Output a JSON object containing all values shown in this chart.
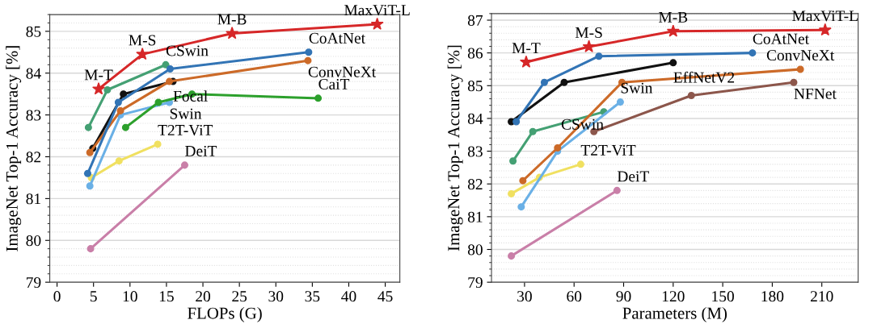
{
  "chart_data": [
    {
      "type": "line",
      "xlabel": "FLOPs (G)",
      "ylabel": "ImageNet Top-1 Accuracy [%]",
      "xlim": [
        -1,
        47
      ],
      "ylim": [
        79,
        85.4
      ],
      "xticks": [
        0,
        5,
        10,
        15,
        20,
        25,
        30,
        35,
        40,
        45
      ],
      "yticks": [
        79,
        80,
        81,
        82,
        83,
        84,
        85
      ],
      "grid": "y",
      "marker": "circle",
      "series": [
        {
          "color": "#d62728",
          "marker": "star",
          "x": [
            5.7,
            11.7,
            24.0,
            43.9
          ],
          "values": [
            83.62,
            84.45,
            84.95,
            85.17
          ]
        },
        {
          "color": "#3274b5",
          "x": [
            4.2,
            8.4,
            15.5,
            34.5
          ],
          "values": [
            81.6,
            83.3,
            84.1,
            84.5
          ]
        },
        {
          "color": "#cc6a28",
          "x": [
            4.5,
            8.7,
            15.4,
            34.4
          ],
          "values": [
            82.1,
            83.1,
            83.8,
            84.3
          ]
        },
        {
          "color": "#111111",
          "x": [
            4.9,
            9.1,
            15.9
          ],
          "values": [
            82.2,
            83.5,
            83.8
          ]
        },
        {
          "color": "#44a073",
          "x": [
            4.3,
            6.9,
            14.9
          ],
          "values": [
            82.7,
            83.6,
            84.2
          ]
        },
        {
          "color": "#2ca02c",
          "x": [
            9.4,
            13.9,
            18.5,
            35.8
          ],
          "values": [
            82.7,
            83.3,
            83.5,
            83.4
          ]
        },
        {
          "color": "#6ab0e6",
          "x": [
            4.5,
            8.7,
            15.4
          ],
          "values": [
            81.3,
            83.0,
            83.3
          ]
        },
        {
          "color": "#f0e060",
          "x": [
            4.7,
            8.5,
            13.8
          ],
          "values": [
            81.5,
            81.9,
            82.3
          ]
        },
        {
          "color": "#c97fa8",
          "x": [
            4.6,
            17.5
          ],
          "values": [
            79.8,
            81.8
          ]
        }
      ],
      "annotations": [
        {
          "text": "M-T",
          "x": 5.7,
          "y": 83.62
        },
        {
          "text": "M-S",
          "x": 11.7,
          "y": 84.45
        },
        {
          "text": "M-B",
          "x": 24.0,
          "y": 84.95
        },
        {
          "text": "MaxViT-L",
          "x": 43.9,
          "y": 85.17
        },
        {
          "text": "CoAtNet",
          "x": 34.5,
          "y": 84.5
        },
        {
          "text": "ConvNeXt",
          "x": 34.4,
          "y": 84.3
        },
        {
          "text": "CSwin",
          "x": 14.9,
          "y": 84.2
        },
        {
          "text": "Focal",
          "x": 15.9,
          "y": 83.8
        },
        {
          "text": "CaiT",
          "x": 35.8,
          "y": 83.4
        },
        {
          "text": "Swin",
          "x": 15.4,
          "y": 83.3
        },
        {
          "text": "T2T-ViT",
          "x": 13.8,
          "y": 82.3
        },
        {
          "text": "DeiT",
          "x": 17.5,
          "y": 81.8
        }
      ]
    },
    {
      "type": "line",
      "xlabel": "Parameters (M)",
      "ylabel": "ImageNet Top-1 Accuracy [%]",
      "xlim": [
        10,
        232
      ],
      "ylim": [
        79,
        87.2
      ],
      "xticks": [
        30,
        60,
        90,
        120,
        150,
        180,
        210
      ],
      "yticks": [
        79,
        80,
        81,
        82,
        83,
        84,
        85,
        86,
        87
      ],
      "grid": "y",
      "marker": "circle",
      "series": [
        {
          "color": "#d62728",
          "marker": "star",
          "x": [
            31,
            69,
            120,
            212
          ],
          "values": [
            85.72,
            86.19,
            86.66,
            86.7
          ]
        },
        {
          "color": "#3274b5",
          "x": [
            25,
            42,
            75,
            168
          ],
          "values": [
            83.9,
            85.1,
            85.9,
            86.0
          ]
        },
        {
          "color": "#111111",
          "x": [
            22,
            54,
            120
          ],
          "values": [
            83.9,
            85.1,
            85.7
          ]
        },
        {
          "color": "#cc6a28",
          "x": [
            29,
            50,
            89,
            197
          ],
          "values": [
            82.1,
            83.1,
            85.1,
            85.5
          ]
        },
        {
          "color": "#8c564b",
          "x": [
            72,
            131,
            193
          ],
          "values": [
            83.6,
            84.7,
            85.1
          ]
        },
        {
          "color": "#6ab0e6",
          "x": [
            28,
            50,
            88
          ],
          "values": [
            81.3,
            83.0,
            84.5
          ]
        },
        {
          "color": "#44a073",
          "x": [
            23,
            35,
            78
          ],
          "values": [
            82.7,
            83.6,
            84.2
          ]
        },
        {
          "color": "#f0e060",
          "x": [
            22,
            39,
            64
          ],
          "values": [
            81.7,
            82.2,
            82.6
          ]
        },
        {
          "color": "#c97fa8",
          "x": [
            22,
            86
          ],
          "values": [
            79.8,
            81.8
          ]
        }
      ],
      "annotations": [
        {
          "text": "M-T",
          "x": 31,
          "y": 85.72
        },
        {
          "text": "M-S",
          "x": 69,
          "y": 86.19
        },
        {
          "text": "M-B",
          "x": 120,
          "y": 86.66
        },
        {
          "text": "MaxViT-L",
          "x": 212,
          "y": 86.7
        },
        {
          "text": "CoAtNet",
          "x": 168,
          "y": 86.0
        },
        {
          "text": "EffNetV2",
          "x": 120,
          "y": 85.7
        },
        {
          "text": "ConvNeXt",
          "x": 197,
          "y": 85.5
        },
        {
          "text": "NFNet",
          "x": 193,
          "y": 85.1
        },
        {
          "text": "Swin",
          "x": 88,
          "y": 84.5
        },
        {
          "text": "CSwin",
          "x": 78,
          "y": 84.2
        },
        {
          "text": "T2T-ViT",
          "x": 64,
          "y": 82.6
        },
        {
          "text": "DeiT",
          "x": 86,
          "y": 81.8
        }
      ]
    }
  ]
}
